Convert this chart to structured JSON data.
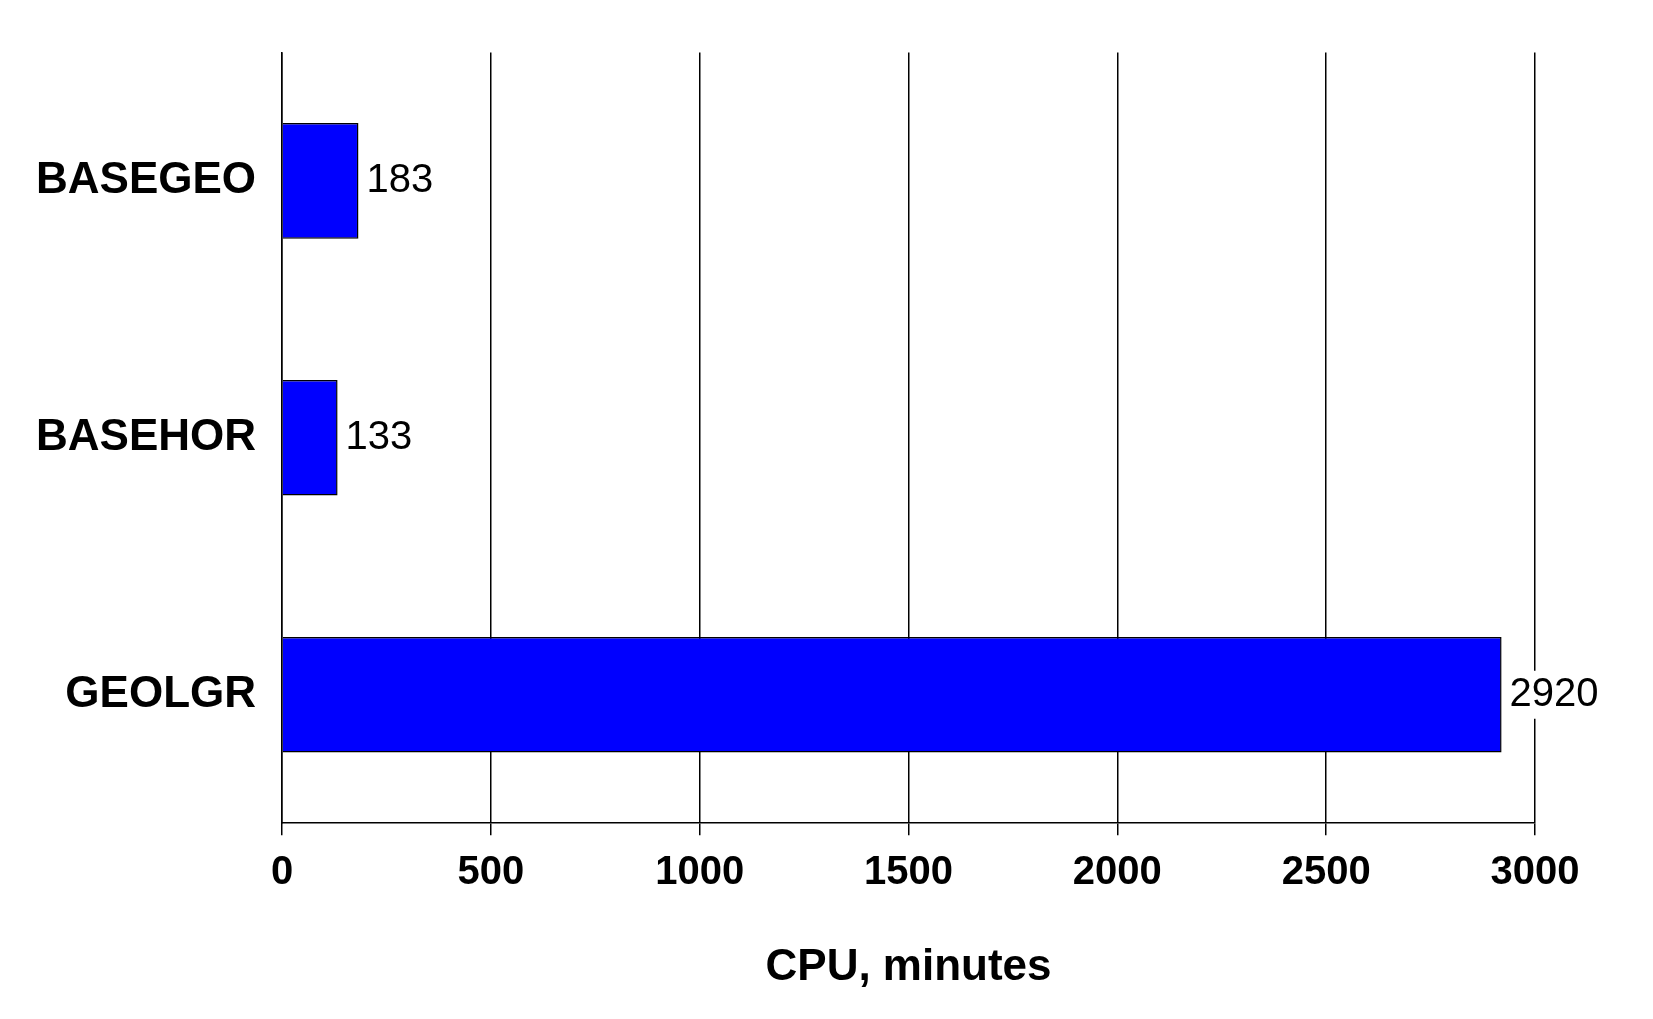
{
  "chart_data": {
    "type": "bar",
    "orientation": "horizontal",
    "categories": [
      "BASEGEO",
      "BASEHOR",
      "GEOLGR"
    ],
    "values": [
      183,
      133,
      2920
    ],
    "color": "#0000ff",
    "xlim": [
      0,
      3000
    ],
    "xticks": [
      0,
      500,
      1000,
      1500,
      2000,
      2500,
      3000
    ],
    "xlabel": "CPU, minutes",
    "grid": "x",
    "data_labels": true,
    "legend": false
  }
}
